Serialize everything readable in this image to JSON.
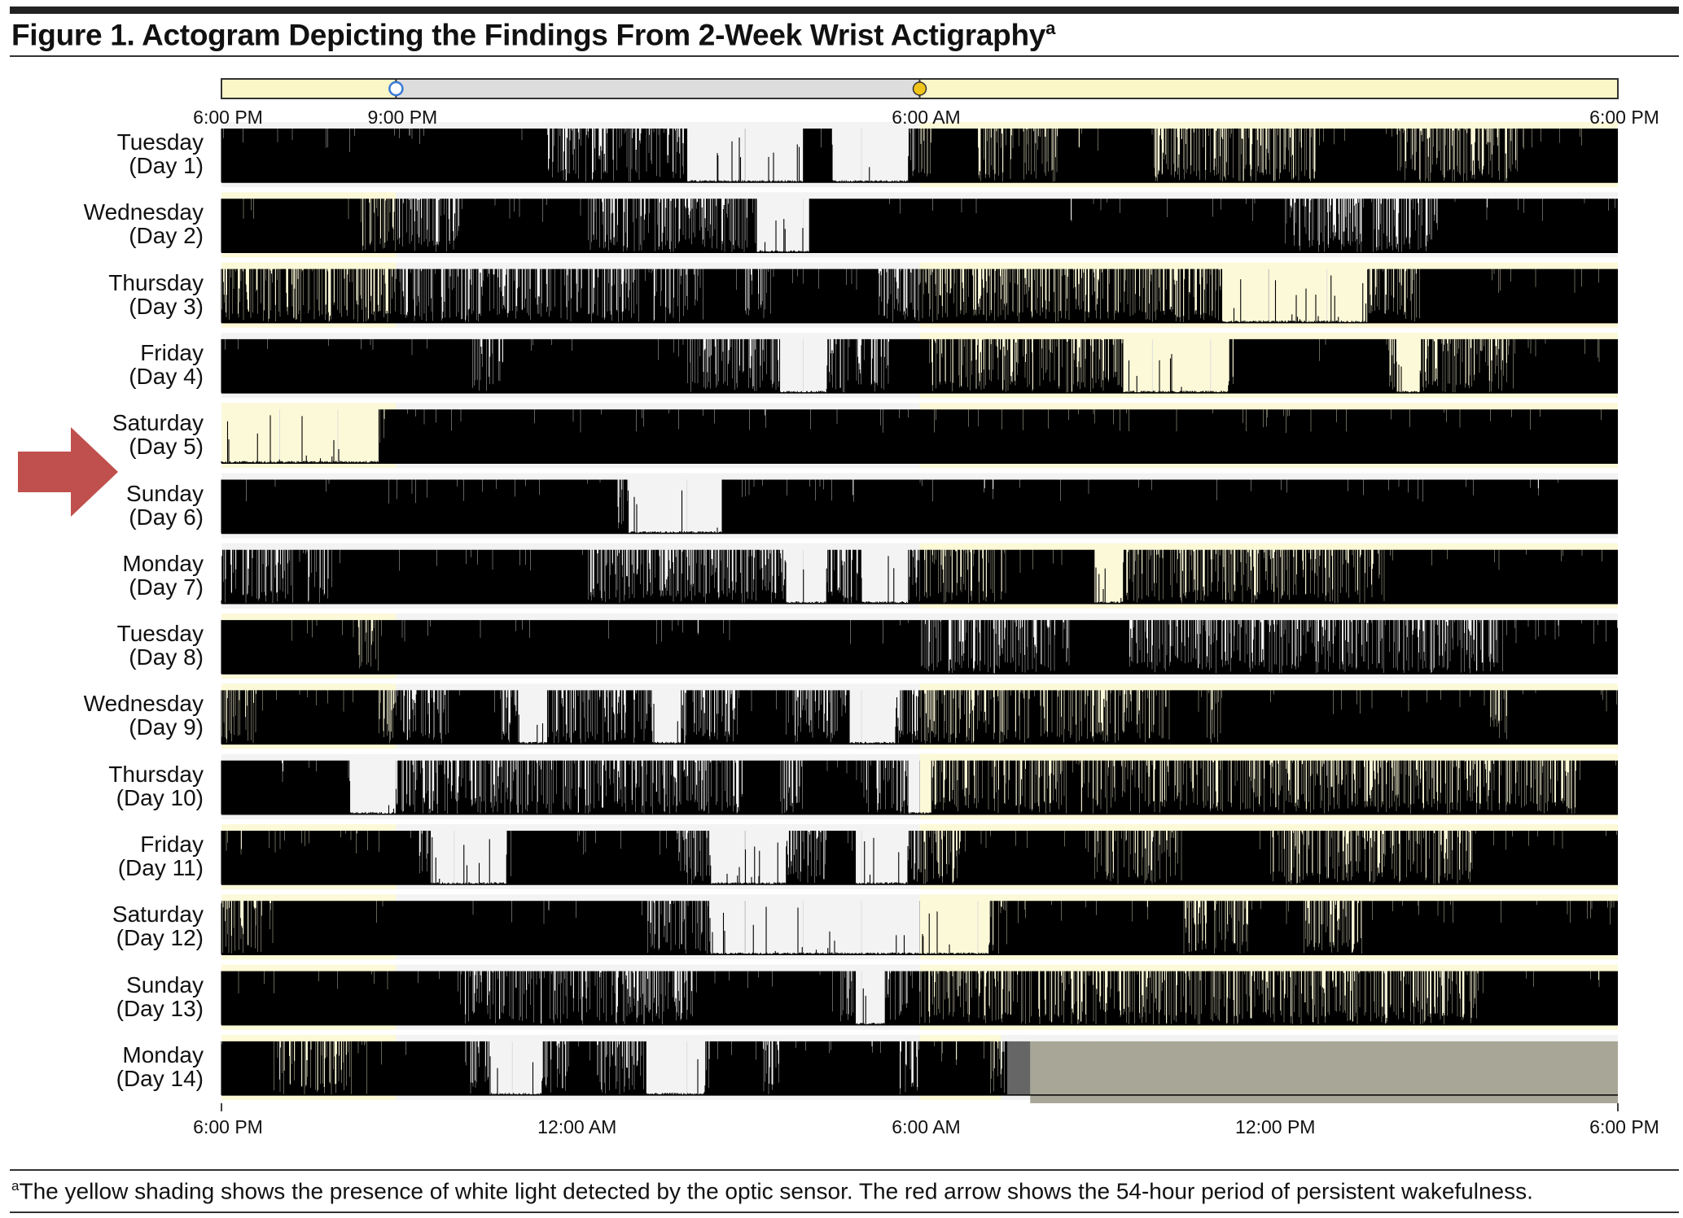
{
  "figure": {
    "title": "Figure 1. Actogram Depicting the Findings From 2-Week Wrist Actigraphy",
    "title_superscript": "a",
    "footnote_superscript": "a",
    "footnote": "The yellow shading shows the presence of white light detected by the optic sensor. The red arrow shows the 54-hour period of persistent wakefulness."
  },
  "chart_data": {
    "type": "actogram",
    "x_axis": {
      "range_hours": [
        18,
        42
      ],
      "top_ticks": [
        {
          "label": "6:00 PM",
          "hour": 18
        },
        {
          "label": "9:00 PM",
          "hour": 21
        },
        {
          "label": "6:00 AM",
          "hour": 30
        },
        {
          "label": "6:00 PM",
          "hour": 42
        }
      ],
      "bottom_ticks": [
        {
          "label": "6:00 PM",
          "hour": 18
        },
        {
          "label": "12:00 AM",
          "hour": 24
        },
        {
          "label": "6:00 AM",
          "hour": 30
        },
        {
          "label": "12:00 PM",
          "hour": 36
        },
        {
          "label": "6:00 PM",
          "hour": 42
        }
      ]
    },
    "light_schedule": {
      "dark_start_hour": 21,
      "dark_end_hour": 30,
      "colors": {
        "light": "#fcf9d8",
        "dark": "#dcdcdc"
      }
    },
    "days": [
      {
        "label": "Tuesday\n(Day 1)",
        "solid": [
          [
            18,
            23.6
          ],
          [
            28,
            28.5
          ],
          [
            30.2,
            31
          ],
          [
            32.4,
            34
          ],
          [
            36.8,
            38.2
          ],
          [
            40.3,
            42
          ]
        ],
        "rest": [
          [
            21.9,
            23.2
          ],
          [
            26,
            28
          ],
          [
            28.5,
            29.8
          ]
        ],
        "light_shading": [
          [
            30,
            42
          ]
        ]
      },
      {
        "label": "Wednesday\n(Day 2)",
        "solid": [
          [
            18,
            20.4
          ],
          [
            22.1,
            24.3
          ],
          [
            28.1,
            31
          ],
          [
            31,
            36.2
          ],
          [
            38.9,
            42
          ]
        ],
        "rest": [
          [
            27.2,
            28.1
          ]
        ],
        "light_shading": [
          [
            18,
            21
          ]
        ]
      },
      {
        "label": "Thursday\n(Day 3)",
        "solid": [
          [
            26.3,
            27
          ],
          [
            27.5,
            29.2
          ],
          [
            38.6,
            42
          ]
        ],
        "rest": [
          [
            35.2,
            37.7
          ]
        ],
        "light_shading": [
          [
            18,
            21
          ],
          [
            30,
            42
          ]
        ]
      },
      {
        "label": "Friday\n(Day 4)",
        "solid": [
          [
            18,
            22.3
          ],
          [
            22.9,
            26
          ],
          [
            29.5,
            30.2
          ],
          [
            35.4,
            38
          ],
          [
            40.2,
            42
          ]
        ],
        "rest": [
          [
            27.6,
            28.4
          ],
          [
            33.5,
            35.3
          ],
          [
            38.2,
            38.6
          ]
        ],
        "light_shading": [
          [
            30,
            42
          ]
        ]
      },
      {
        "label": "Saturday\n(Day 5)",
        "solid": [
          [
            20.8,
            42
          ]
        ],
        "rest": [
          [
            18,
            20.7
          ]
        ],
        "light_shading": [
          [
            18,
            21
          ],
          [
            30,
            42
          ]
        ]
      },
      {
        "label": "Sunday\n(Day 6)",
        "solid": [
          [
            18,
            21.5
          ],
          [
            21.5,
            24.8
          ],
          [
            26.6,
            30
          ],
          [
            30,
            42
          ]
        ],
        "rest": [
          [
            25,
            27.2
          ]
        ],
        "light_shading": []
      },
      {
        "label": "Monday\n(Day 7)",
        "solid": [
          [
            19.9,
            24.3
          ],
          [
            31.5,
            33
          ],
          [
            38,
            42
          ]
        ],
        "rest": [
          [
            27.7,
            28.4
          ],
          [
            29,
            29.8
          ],
          [
            32.8,
            33.5
          ]
        ],
        "light_shading": [
          [
            30,
            42
          ]
        ]
      },
      {
        "label": "Tuesday\n(Day 8)",
        "solid": [
          [
            18,
            20.3
          ],
          [
            20.7,
            30
          ],
          [
            32.6,
            33.6
          ],
          [
            40.1,
            42
          ]
        ],
        "rest": [],
        "light_shading": [
          [
            18,
            21
          ]
        ]
      },
      {
        "label": "Wednesday\n(Day 9)",
        "solid": [
          [
            18.6,
            20.7
          ],
          [
            21.9,
            22.8
          ],
          [
            26.9,
            27.7
          ],
          [
            34.3,
            34.8
          ],
          [
            35.2,
            39.8
          ],
          [
            40.1,
            42
          ]
        ],
        "rest": [
          [
            23.1,
            23.6
          ],
          [
            25.4,
            25.9
          ],
          [
            28.8,
            29.6
          ]
        ],
        "light_shading": [
          [
            18,
            21
          ],
          [
            30,
            42
          ]
        ]
      },
      {
        "label": "Thursday\n(Day 10)",
        "solid": [
          [
            18,
            20.1
          ],
          [
            27,
            27.6
          ],
          [
            28,
            29
          ],
          [
            41.3,
            42
          ]
        ],
        "rest": [
          [
            20.2,
            21
          ],
          [
            29.8,
            30.2
          ]
        ],
        "light_shading": [
          [
            30,
            42
          ]
        ]
      },
      {
        "label": "Friday\n(Day 11)",
        "solid": [
          [
            18,
            21.4
          ],
          [
            23,
            25.8
          ],
          [
            28.4,
            28.9
          ],
          [
            30.7,
            33
          ],
          [
            34.5,
            36
          ],
          [
            39.5,
            42
          ]
        ],
        "rest": [
          [
            21.6,
            22.9
          ],
          [
            26.4,
            27.7
          ],
          [
            28.9,
            29.8
          ]
        ],
        "light_shading": [
          [
            18,
            21
          ],
          [
            30,
            42
          ]
        ]
      },
      {
        "label": "Saturday\n(Day 12)",
        "solid": [
          [
            18.9,
            25.3
          ],
          [
            31.5,
            34.5
          ],
          [
            35.7,
            36.6
          ],
          [
            37.6,
            42
          ]
        ],
        "rest": [
          [
            26.4,
            30
          ],
          [
            30,
            31.2
          ]
        ],
        "light_shading": [
          [
            18,
            21
          ],
          [
            30,
            42
          ]
        ]
      },
      {
        "label": "Sunday\n(Day 13)",
        "solid": [
          [
            18,
            22.1
          ],
          [
            26.1,
            28.5
          ],
          [
            39.6,
            42
          ]
        ],
        "rest": [
          [
            28.9,
            29.4
          ]
        ],
        "light_shading": [
          [
            18,
            21
          ],
          [
            30,
            42
          ]
        ]
      },
      {
        "label": "Monday\n(Day 14)",
        "solid": [
          [
            18,
            18.8
          ],
          [
            20.5,
            22.2
          ],
          [
            24,
            24.4
          ],
          [
            26.4,
            27.3
          ],
          [
            27.6,
            29.6
          ],
          [
            30,
            31.2
          ]
        ],
        "rest": [
          [
            22.6,
            23.5
          ],
          [
            25.3,
            26.3
          ]
        ],
        "light_shading": [
          [
            18,
            21
          ],
          [
            30,
            31.4
          ]
        ],
        "off_wrist": [
          [
            31.5,
            31.9
          ]
        ],
        "missing_data": [
          [
            31.9,
            42
          ]
        ]
      }
    ],
    "annotations": [
      {
        "type": "arrow",
        "color": "#c0504d",
        "points_to_days": [
          "Saturday\n(Day 5)",
          "Sunday\n(Day 6)"
        ]
      }
    ]
  }
}
